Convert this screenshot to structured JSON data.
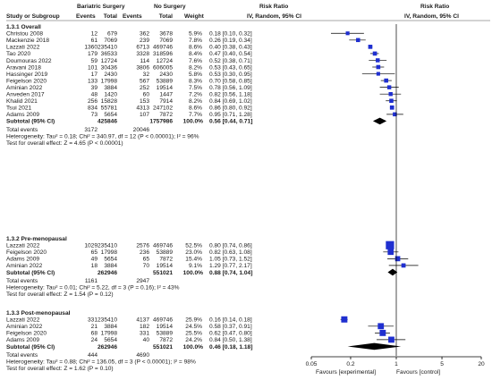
{
  "header": {
    "group1": "Bariatric Surgery",
    "group2": "No Surgery",
    "rr": "Risk Ratio",
    "rr_right": "Risk Ratio",
    "study": "Study or Subgroup",
    "events1": "Events",
    "total1": "Total",
    "events2": "Events",
    "total2": "Total",
    "weight": "Weight",
    "method": "IV, Random, 95% CI",
    "method_right": "IV, Random, 95% CI"
  },
  "axis": {
    "ticks": [
      "0.05",
      "0.2",
      "1",
      "5",
      "20"
    ],
    "favours_left": "Favours [experimental]",
    "favours_right": "Favours [control]"
  },
  "chart_data": {
    "type": "forest",
    "scale": "log",
    "xlim": [
      0.05,
      20
    ],
    "null_line": 1,
    "subgroups": [
      {
        "title": "1.3.1 Overall",
        "studies": [
          {
            "name": "Christou 2008",
            "e1": "12",
            "t1": "679",
            "e2": "362",
            "t2": "3678",
            "weight": "5.9%",
            "ci_text": "0.18 [0.10, 0.32]",
            "rr": 0.18,
            "lo": 0.1,
            "hi": 0.32,
            "w": 5.9
          },
          {
            "name": "Mackenzie 2018",
            "e1": "61",
            "t1": "7069",
            "e2": "239",
            "t2": "7069",
            "weight": "7.8%",
            "ci_text": "0.26 [0.19, 0.34]",
            "rr": 0.26,
            "lo": 0.19,
            "hi": 0.34,
            "w": 7.8
          },
          {
            "name": "Lazzati 2022",
            "e1": "1360",
            "t1": "235410",
            "e2": "6713",
            "t2": "469746",
            "weight": "8.6%",
            "ci_text": "0.40 [0.38, 0.43]",
            "rr": 0.4,
            "lo": 0.38,
            "hi": 0.43,
            "w": 8.6
          },
          {
            "name": "Tao 2020",
            "e1": "179",
            "t1": "36533",
            "e2": "3328",
            "t2": "318596",
            "weight": "8.4%",
            "ci_text": "0.47 [0.40, 0.54]",
            "rr": 0.47,
            "lo": 0.4,
            "hi": 0.54,
            "w": 8.4
          },
          {
            "name": "Doumouras 2022",
            "e1": "59",
            "t1": "12724",
            "e2": "114",
            "t2": "12724",
            "weight": "7.6%",
            "ci_text": "0.52 [0.38, 0.71]",
            "rr": 0.52,
            "lo": 0.38,
            "hi": 0.71,
            "w": 7.6
          },
          {
            "name": "Aravani 2018",
            "e1": "101",
            "t1": "30436",
            "e2": "3806",
            "t2": "606005",
            "weight": "8.2%",
            "ci_text": "0.53 [0.43, 0.65]",
            "rr": 0.53,
            "lo": 0.43,
            "hi": 0.65,
            "w": 8.2
          },
          {
            "name": "Hassinger 2019",
            "e1": "17",
            "t1": "2430",
            "e2": "32",
            "t2": "2430",
            "weight": "5.8%",
            "ci_text": "0.53 [0.30, 0.95]",
            "rr": 0.53,
            "lo": 0.3,
            "hi": 0.95,
            "w": 5.8
          },
          {
            "name": "Feigelson 2020",
            "e1": "133",
            "t1": "17998",
            "e2": "567",
            "t2": "53889",
            "weight": "8.3%",
            "ci_text": "0.70 [0.58, 0.85]",
            "rr": 0.7,
            "lo": 0.58,
            "hi": 0.85,
            "w": 8.3
          },
          {
            "name": "Aminian 2022",
            "e1": "39",
            "t1": "3884",
            "e2": "252",
            "t2": "19514",
            "weight": "7.5%",
            "ci_text": "0.78 [0.56, 1.09]",
            "rr": 0.78,
            "lo": 0.56,
            "hi": 1.09,
            "w": 7.5
          },
          {
            "name": "Anveden 2017",
            "e1": "48",
            "t1": "1420",
            "e2": "60",
            "t2": "1447",
            "weight": "7.2%",
            "ci_text": "0.82 [0.56, 1.18]",
            "rr": 0.82,
            "lo": 0.56,
            "hi": 1.18,
            "w": 7.2
          },
          {
            "name": "Khalid 2021",
            "e1": "256",
            "t1": "15828",
            "e2": "153",
            "t2": "7914",
            "weight": "8.2%",
            "ci_text": "0.84 [0.69, 1.02]",
            "rr": 0.84,
            "lo": 0.69,
            "hi": 1.02,
            "w": 8.2
          },
          {
            "name": "Tsui 2021",
            "e1": "834",
            "t1": "55781",
            "e2": "4313",
            "t2": "247102",
            "weight": "8.6%",
            "ci_text": "0.86 [0.80, 0.92]",
            "rr": 0.86,
            "lo": 0.8,
            "hi": 0.92,
            "w": 8.6
          },
          {
            "name": "Adams 2009",
            "e1": "73",
            "t1": "5654",
            "e2": "107",
            "t2": "7872",
            "weight": "7.7%",
            "ci_text": "0.95 [0.71, 1.28]",
            "rr": 0.95,
            "lo": 0.71,
            "hi": 1.28,
            "w": 7.7
          }
        ],
        "subtotal": {
          "label": "Subtotal (95% CI)",
          "t1": "425846",
          "t2": "1757986",
          "weight": "100.0%",
          "ci_text": "0.56 [0.44, 0.71]",
          "rr": 0.56,
          "lo": 0.44,
          "hi": 0.71
        },
        "total_events": {
          "label": "Total events",
          "e1": "3172",
          "e2": "20046"
        },
        "heterogeneity": "Heterogeneity: Tau² = 0.18; Chi² = 340.97, df = 12 (P < 0.00001); I² = 96%",
        "overall_effect": "Test for overall effect: Z = 4.65 (P < 0.00001)"
      },
      {
        "title": "1.3.2 Pre-menopausal",
        "studies": [
          {
            "name": "Lazzati 2022",
            "e1": "1029",
            "t1": "235410",
            "e2": "2576",
            "t2": "469746",
            "weight": "52.5%",
            "ci_text": "0.80 [0.74, 0.86]",
            "rr": 0.8,
            "lo": 0.74,
            "hi": 0.86,
            "w": 52.5
          },
          {
            "name": "Feigelson 2020",
            "e1": "65",
            "t1": "17998",
            "e2": "236",
            "t2": "53889",
            "weight": "23.0%",
            "ci_text": "0.82 [0.63, 1.08]",
            "rr": 0.82,
            "lo": 0.63,
            "hi": 1.08,
            "w": 23.0
          },
          {
            "name": "Adams 2009",
            "e1": "49",
            "t1": "5654",
            "e2": "65",
            "t2": "7872",
            "weight": "15.4%",
            "ci_text": "1.05 [0.73, 1.52]",
            "rr": 1.05,
            "lo": 0.73,
            "hi": 1.52,
            "w": 15.4
          },
          {
            "name": "Aminian 2022",
            "e1": "18",
            "t1": "3884",
            "e2": "70",
            "t2": "19514",
            "weight": "9.1%",
            "ci_text": "1.29 [0.77, 2.17]",
            "rr": 1.29,
            "lo": 0.77,
            "hi": 2.17,
            "w": 9.1
          }
        ],
        "subtotal": {
          "label": "Subtotal (95% CI)",
          "t1": "262946",
          "t2": "551021",
          "weight": "100.0%",
          "ci_text": "0.88 [0.74, 1.04]",
          "rr": 0.88,
          "lo": 0.74,
          "hi": 1.04
        },
        "total_events": {
          "label": "Total events",
          "e1": "1161",
          "e2": "2947"
        },
        "heterogeneity": "Heterogeneity: Tau² = 0.01; Chi² = 5.22, df = 3 (P = 0.16); I² = 43%",
        "overall_effect": "Test for overall effect: Z = 1.54 (P = 0.12)"
      },
      {
        "title": "1.3.3 Post-menopausal",
        "studies": [
          {
            "name": "Lazzati 2022",
            "e1": "331",
            "t1": "235410",
            "e2": "4137",
            "t2": "469746",
            "weight": "25.9%",
            "ci_text": "0.16 [0.14, 0.18]",
            "rr": 0.16,
            "lo": 0.14,
            "hi": 0.18,
            "w": 25.9
          },
          {
            "name": "Aminian 2022",
            "e1": "21",
            "t1": "3884",
            "e2": "182",
            "t2": "19514",
            "weight": "24.5%",
            "ci_text": "0.58 [0.37, 0.91]",
            "rr": 0.58,
            "lo": 0.37,
            "hi": 0.91,
            "w": 24.5
          },
          {
            "name": "Feigelson 2020",
            "e1": "68",
            "t1": "17998",
            "e2": "331",
            "t2": "53889",
            "weight": "25.5%",
            "ci_text": "0.62 [0.47, 0.80]",
            "rr": 0.62,
            "lo": 0.47,
            "hi": 0.8,
            "w": 25.5
          },
          {
            "name": "Adams 2009",
            "e1": "24",
            "t1": "5654",
            "e2": "40",
            "t2": "7872",
            "weight": "24.2%",
            "ci_text": "0.84 [0.50, 1.38]",
            "rr": 0.84,
            "lo": 0.5,
            "hi": 1.38,
            "w": 24.2
          }
        ],
        "subtotal": {
          "label": "Subtotal (95% CI)",
          "t1": "262946",
          "t2": "551021",
          "weight": "100.0%",
          "ci_text": "0.46 [0.18, 1.18]",
          "rr": 0.46,
          "lo": 0.18,
          "hi": 1.18
        },
        "total_events": {
          "label": "Total events",
          "e1": "444",
          "e2": "4690"
        },
        "heterogeneity": "Heterogeneity: Tau² = 0.88; Chi² = 136.05, df = 3 (P < 0.00001); I² = 98%",
        "overall_effect": "Test for overall effect: Z = 1.62 (P = 0.10)"
      }
    ]
  },
  "colors": {
    "marker": "#1f2fd0",
    "diamond": "#000000",
    "line": "#000000",
    "header_rule": "#8a8a8a"
  }
}
